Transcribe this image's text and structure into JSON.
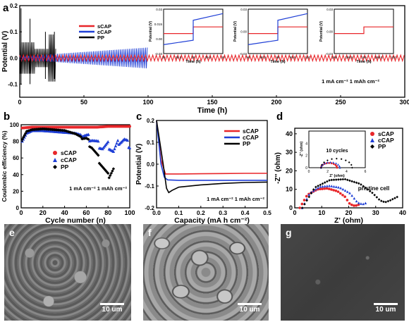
{
  "chart_data": [
    {
      "panel": "a",
      "type": "line",
      "xlabel": "Time (h)",
      "ylabel": "Potential (V)",
      "xlim": [
        0,
        300
      ],
      "ylim": [
        -0.15,
        0.2
      ],
      "xticks": [
        "0",
        "50",
        "100",
        "150",
        "200",
        "250",
        "300"
      ],
      "yticks": [
        "-0.1",
        "0.0",
        "0.1",
        "0.2"
      ],
      "series": [
        {
          "name": "sCAP",
          "color": "#e8262a",
          "x": [
            0,
            300
          ],
          "y": [
            0.012,
            -0.012
          ]
        },
        {
          "name": "cCAP",
          "color": "#1f3fd6",
          "x": [
            0,
            100
          ],
          "y": [
            0.04,
            -0.04
          ]
        },
        {
          "name": "PP",
          "color": "#000000",
          "x": [
            0,
            28
          ],
          "y": [
            0.09,
            -0.1
          ]
        }
      ],
      "condition": "1 mA cm⁻²  1 mAh cm⁻²",
      "insets": [
        {
          "xlim": [
            38,
            40
          ],
          "xticks": [
            "38",
            "38.5",
            "39",
            "39.5",
            "40"
          ],
          "ylim": [
            -0.03,
            0.03
          ],
          "yticks": [
            "-0.03",
            "0.00",
            "0.015",
            "0.03"
          ],
          "xlabel": "Time (h)",
          "ylabel": "Potential (V)"
        },
        {
          "xlim": [
            98,
            100
          ],
          "xticks": [
            "98",
            "98.5",
            "99",
            "99.5",
            "100"
          ],
          "ylim": [
            -0.03,
            0.03
          ],
          "yticks": [
            "-0.03",
            "0.00",
            "0.03"
          ],
          "xlabel": "Time (h)",
          "ylabel": "Potential (V)"
        },
        {
          "xlim": [
            198,
            200
          ],
          "xticks": [
            "198",
            "198.5",
            "199",
            "199.5",
            "200"
          ],
          "ylim": [
            -0.03,
            0.03
          ],
          "yticks": [
            "-0.03",
            "0.00",
            "0.03"
          ],
          "xlabel": "Time (h)",
          "ylabel": "Potential (V)"
        }
      ]
    },
    {
      "panel": "b",
      "type": "scatter",
      "xlabel": "Cycle number (n)",
      "ylabel": "Coulombic efficiency (%)",
      "xlim": [
        0,
        100
      ],
      "ylim": [
        0,
        100
      ],
      "xticks": [
        "0",
        "20",
        "40",
        "60",
        "80",
        "100"
      ],
      "yticks": [
        "0",
        "20",
        "40",
        "60",
        "80",
        "100"
      ],
      "series": [
        {
          "name": "sCAP",
          "color": "#e8262a",
          "x": [
            0,
            10,
            20,
            30,
            40,
            50,
            60,
            70,
            80,
            90,
            100
          ],
          "y": [
            96,
            97,
            97,
            97,
            97,
            97,
            97,
            97,
            98,
            98,
            98
          ]
        },
        {
          "name": "cCAP",
          "color": "#1f3fd6",
          "x": [
            0,
            5,
            10,
            20,
            30,
            40,
            50,
            60,
            65,
            70,
            75,
            80,
            85,
            90,
            95,
            100
          ],
          "y": [
            78,
            90,
            93,
            93,
            92,
            91,
            90,
            86,
            83,
            78,
            72,
            76,
            68,
            80,
            82,
            75
          ]
        },
        {
          "name": "PP",
          "color": "#000000",
          "x": [
            0,
            5,
            10,
            20,
            30,
            40,
            50,
            60,
            65,
            70,
            75,
            80,
            85
          ],
          "y": [
            80,
            92,
            94,
            95,
            94,
            93,
            89,
            82,
            74,
            62,
            50,
            38,
            47
          ]
        }
      ],
      "condition": "1 mA cm⁻²  1 mAh cm⁻²"
    },
    {
      "panel": "c",
      "type": "line",
      "xlabel": "Capacity (mA h cm⁻²)",
      "ylabel": "Potential (V)",
      "xlim": [
        0,
        0.5
      ],
      "ylim": [
        -0.2,
        0.2
      ],
      "xticks": [
        "0.0",
        "0.1",
        "0.2",
        "0.3",
        "0.4",
        "0.5"
      ],
      "yticks": [
        "-0.2",
        "-0.1",
        "0.0",
        "0.1",
        "0.2"
      ],
      "series": [
        {
          "name": "sCAP",
          "color": "#e8262a",
          "x": [
            0,
            0.02,
            0.04,
            0.1,
            0.2,
            0.3,
            0.4,
            0.5
          ],
          "y": [
            0.2,
            0.02,
            -0.045,
            -0.045,
            -0.044,
            -0.043,
            -0.042,
            -0.042
          ]
        },
        {
          "name": "cCAP",
          "color": "#1f3fd6",
          "x": [
            0,
            0.02,
            0.035,
            0.05,
            0.1,
            0.2,
            0.3,
            0.4,
            0.5
          ],
          "y": [
            0.2,
            0.0,
            -0.06,
            -0.072,
            -0.074,
            -0.074,
            -0.074,
            -0.074,
            -0.074
          ]
        },
        {
          "name": "PP",
          "color": "#000000",
          "x": [
            0,
            0.03,
            0.045,
            0.055,
            0.07,
            0.1,
            0.2,
            0.3,
            0.4,
            0.5
          ],
          "y": [
            0.2,
            0.0,
            -0.11,
            -0.13,
            -0.12,
            -0.105,
            -0.095,
            -0.088,
            -0.084,
            -0.082
          ]
        }
      ],
      "condition": "1 mA cm⁻²  1 mAh cm⁻²"
    },
    {
      "panel": "d",
      "type": "scatter",
      "xlabel": "Z' (ohm)",
      "ylabel": "-Z'' (ohm)",
      "xlim": [
        0,
        43
      ],
      "ylim": [
        0,
        43
      ],
      "xticks": [
        "0",
        "10",
        "20",
        "30",
        "40"
      ],
      "yticks": [
        "0",
        "10",
        "20",
        "30",
        "40"
      ],
      "series": [
        {
          "name": "sCAP",
          "color": "#e8262a",
          "x": [
            2,
            5,
            9,
            13,
            17,
            20,
            22,
            24,
            26
          ],
          "y": [
            0,
            7,
            10,
            10.5,
            9,
            6,
            2,
            1,
            2
          ]
        },
        {
          "name": "cCAP",
          "color": "#1f3fd6",
          "x": [
            3,
            6,
            10,
            14,
            18,
            22,
            25,
            27,
            29
          ],
          "y": [
            0,
            8,
            11.5,
            12,
            11,
            8,
            3,
            2,
            3
          ]
        },
        {
          "name": "PP",
          "color": "#000000",
          "x": [
            3,
            8,
            14,
            20,
            26,
            31,
            34,
            36,
            38,
            41
          ],
          "y": [
            0,
            11,
            15,
            15.5,
            13,
            8,
            4,
            3,
            4,
            6
          ]
        }
      ],
      "annotations": [
        "pristine cell",
        "10 cycles"
      ],
      "inset": {
        "xlim": [
          0,
          6
        ],
        "ylim": [
          0,
          6
        ],
        "xticks": [
          "0",
          "2",
          "4",
          "6"
        ],
        "yticks": [
          "0",
          "2",
          "4"
        ],
        "xlabel": "Z' (ohm)",
        "ylabel": "-Z'' (ohm)"
      }
    }
  ],
  "labels": {
    "a": "a",
    "b": "b",
    "c": "c",
    "d": "d",
    "e": "e",
    "f": "f",
    "g": "g",
    "scale": "10 um"
  },
  "colors": {
    "sCAP": "#e8262a",
    "cCAP": "#1f3fd6",
    "PP": "#000000"
  }
}
